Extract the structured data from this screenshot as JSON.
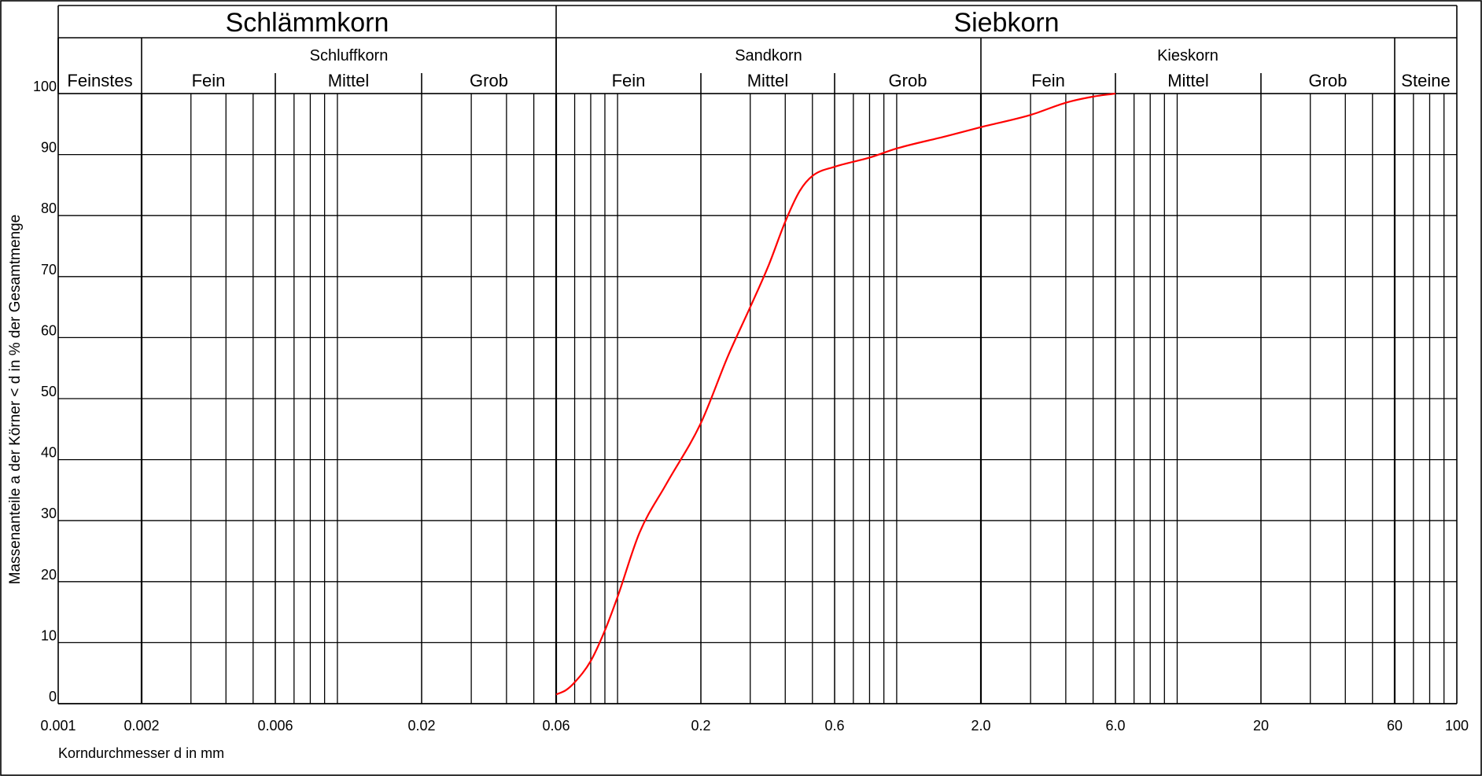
{
  "chart_data": {
    "type": "line",
    "xscale": "log",
    "xlim": [
      0.001,
      100
    ],
    "ylim": [
      0,
      100
    ],
    "xlabel": "Korndurchmesser d in mm",
    "ylabel": "Massenanteile a der Körner < d in % der Gesamtmenge",
    "x_tick_labels": [
      {
        "value": 0.001,
        "label": "0.001"
      },
      {
        "value": 0.002,
        "label": "0.002"
      },
      {
        "value": 0.006,
        "label": "0.006"
      },
      {
        "value": 0.02,
        "label": "0.02"
      },
      {
        "value": 0.06,
        "label": "0.06"
      },
      {
        "value": 0.2,
        "label": "0.2"
      },
      {
        "value": 0.6,
        "label": "0.6"
      },
      {
        "value": 2.0,
        "label": "2.0"
      },
      {
        "value": 6.0,
        "label": "6.0"
      },
      {
        "value": 20,
        "label": "20"
      },
      {
        "value": 60,
        "label": "60"
      },
      {
        "value": 100,
        "label": "100"
      }
    ],
    "y_tick_labels": [
      "0",
      "10",
      "20",
      "30",
      "40",
      "50",
      "60",
      "70",
      "80",
      "90",
      "100"
    ],
    "grid": true,
    "header": {
      "groups": [
        {
          "label": "Schlämmkorn",
          "from": 0.001,
          "to": 0.06
        },
        {
          "label": "Siebkorn",
          "from": 0.06,
          "to": 100
        }
      ],
      "classes": [
        {
          "label": "Feinstes",
          "from": 0.001,
          "to": 0.002
        },
        {
          "label": "Schluffkorn",
          "from": 0.002,
          "to": 0.06
        },
        {
          "label": "Sandkorn",
          "from": 0.06,
          "to": 2.0
        },
        {
          "label": "Kieskorn",
          "from": 2.0,
          "to": 60
        },
        {
          "label": "Steine",
          "from": 60,
          "to": 100
        }
      ],
      "subclasses": [
        {
          "label": "Fein",
          "from": 0.002,
          "to": 0.006
        },
        {
          "label": "Mittel",
          "from": 0.006,
          "to": 0.02
        },
        {
          "label": "Grob",
          "from": 0.02,
          "to": 0.06
        },
        {
          "label": "Fein",
          "from": 0.06,
          "to": 0.2
        },
        {
          "label": "Mittel",
          "from": 0.2,
          "to": 0.6
        },
        {
          "label": "Grob",
          "from": 0.6,
          "to": 2.0
        },
        {
          "label": "Fein",
          "from": 2.0,
          "to": 6.0
        },
        {
          "label": "Mittel",
          "from": 6.0,
          "to": 20
        },
        {
          "label": "Grob",
          "from": 20,
          "to": 60
        }
      ]
    },
    "series": [
      {
        "color": "#ff0000",
        "x": [
          0.06,
          0.065,
          0.07,
          0.08,
          0.09,
          0.1,
          0.12,
          0.15,
          0.2,
          0.25,
          0.3,
          0.35,
          0.4,
          0.45,
          0.5,
          0.6,
          0.8,
          1.0,
          1.5,
          2.0,
          3.0,
          4.0,
          5.0,
          6.0
        ],
        "y": [
          1.5,
          2.2,
          3.5,
          7,
          12,
          17.5,
          28,
          36,
          46,
          57,
          65,
          72,
          79,
          84,
          86.5,
          88,
          89.5,
          91,
          93,
          94.5,
          96.5,
          98.5,
          99.5,
          100
        ]
      }
    ]
  }
}
